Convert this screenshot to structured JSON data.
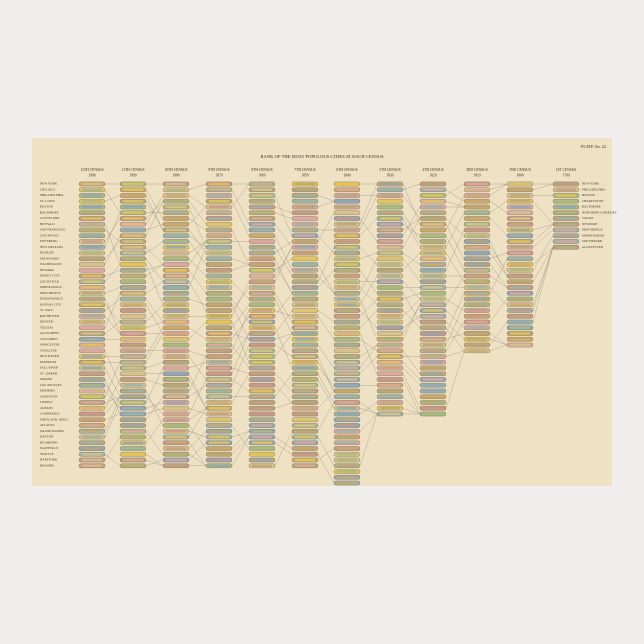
{
  "plate": "PLATE No. 22",
  "title": "RANK OF THE MOST POPULOUS CITIES AT EACH CENSUS",
  "columns": [
    {
      "census": "12TH CENSUS",
      "year": "1900"
    },
    {
      "census": "11TH CENSUS",
      "year": "1890"
    },
    {
      "census": "10TH CENSUS",
      "year": "1880"
    },
    {
      "census": "9TH CENSUS",
      "year": "1870"
    },
    {
      "census": "8TH CENSUS",
      "year": "1860"
    },
    {
      "census": "7TH CENSUS",
      "year": "1850"
    },
    {
      "census": "6TH CENSUS",
      "year": "1840"
    },
    {
      "census": "5TH CENSUS",
      "year": "1830"
    },
    {
      "census": "4TH CENSUS",
      "year": "1820"
    },
    {
      "census": "3RD CENSUS",
      "year": "1810"
    },
    {
      "census": "2ND CENSUS",
      "year": "1800"
    },
    {
      "census": "1ST CENSUS",
      "year": "1790"
    }
  ],
  "first_column_cities": [
    "NEW YORK",
    "CHICAGO",
    "PHILADELPHIA",
    "ST. LOUIS",
    "BOSTON",
    "BALTIMORE",
    "CLEVELAND",
    "BUFFALO",
    "SAN FRANCISCO",
    "CINCINNATI",
    "PITTSBURG",
    "NEW ORLEANS",
    "DETROIT",
    "MILWAUKEE",
    "WASHINGTON",
    "NEWARK",
    "JERSEY CITY",
    "LOUISVILLE",
    "MINNEAPOLIS",
    "PROVIDENCE",
    "INDIANAPOLIS",
    "KANSAS CITY",
    "ST. PAUL",
    "ROCHESTER",
    "DENVER",
    "TOLEDO",
    "ALLEGHENY",
    "COLUMBUS",
    "WORCESTER",
    "SYRACUSE",
    "NEW HAVEN",
    "PATERSON",
    "FALL RIVER",
    "ST. JOSEPH",
    "OMAHA",
    "LOS ANGELES",
    "MEMPHIS",
    "SCRANTON",
    "LOWELL",
    "ALBANY",
    "CAMBRIDGE",
    "PORTLAND, OREG.",
    "ATLANTA",
    "GRAND RAPIDS",
    "DAYTON",
    "RICHMOND",
    "NASHVILLE",
    "SEATTLE",
    "HARTFORD",
    "READING"
  ],
  "last_column_cities": [
    "NEW YORK",
    "PHILADELPHIA",
    "BOSTON",
    "CHARLESTON",
    "BALTIMORE",
    "NORTHERN LIBERTIES",
    "SALEM",
    "NEWPORT",
    "PROVIDENCE",
    "MARBLEHEAD",
    "SOUTHWARK",
    "GLOUCESTER"
  ]
}
